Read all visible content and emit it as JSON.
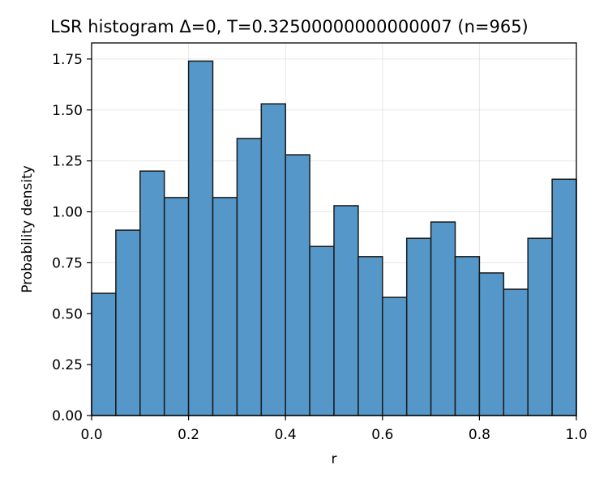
{
  "chart_data": {
    "type": "bar",
    "title": "LSR histogram Δ=0, T=0.32500000000000007 (n=965)",
    "xlabel": "r",
    "ylabel": "Probability density",
    "xlim": [
      0.0,
      1.0
    ],
    "ylim": [
      0.0,
      1.83
    ],
    "grid": true,
    "bar_color": "#5497c8",
    "edge_color": "#1a1a1a",
    "bin_width": 0.05,
    "bin_edges": [
      0.0,
      0.05,
      0.1,
      0.15,
      0.2,
      0.25,
      0.3,
      0.35,
      0.4,
      0.45,
      0.5,
      0.55,
      0.6,
      0.65,
      0.7,
      0.75,
      0.8,
      0.85,
      0.9,
      0.95,
      1.0
    ],
    "values": [
      0.6,
      0.91,
      1.2,
      1.07,
      1.74,
      1.07,
      1.36,
      1.53,
      1.28,
      0.83,
      1.03,
      0.78,
      0.58,
      0.87,
      0.95,
      0.78,
      0.7,
      0.62,
      0.87,
      1.16
    ],
    "xticks": [
      "0.0",
      "0.2",
      "0.4",
      "0.6",
      "0.8",
      "1.0"
    ],
    "xtick_values": [
      0.0,
      0.2,
      0.4,
      0.6,
      0.8,
      1.0
    ],
    "yticks": [
      "0.00",
      "0.25",
      "0.50",
      "0.75",
      "1.00",
      "1.25",
      "1.50",
      "1.75"
    ],
    "ytick_values": [
      0.0,
      0.25,
      0.5,
      0.75,
      1.0,
      1.25,
      1.5,
      1.75
    ]
  }
}
